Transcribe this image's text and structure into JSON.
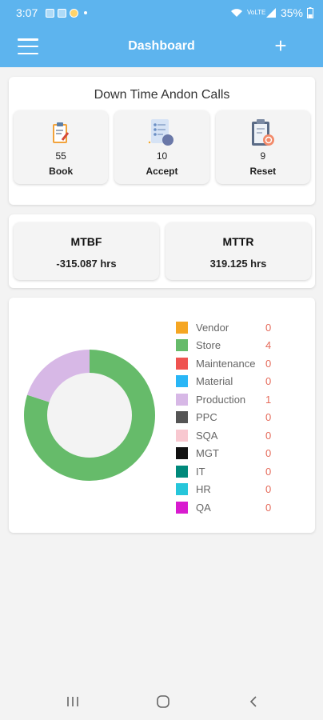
{
  "status_bar": {
    "time": "3:07",
    "battery": "35%",
    "network": "VoLTE"
  },
  "app_bar": {
    "title": "Dashboard"
  },
  "andon": {
    "heading": "Down Time Andon Calls",
    "tiles": [
      {
        "count": "55",
        "label": "Book",
        "icon": "clipboard-pencil-icon"
      },
      {
        "count": "10",
        "label": "Accept",
        "icon": "checklist-user-icon"
      },
      {
        "count": "9",
        "label": "Reset",
        "icon": "clipboard-reset-icon"
      }
    ]
  },
  "metrics": {
    "mtbf": {
      "label": "MTBF",
      "value": "-315.087 hrs"
    },
    "mttr": {
      "label": "MTTR",
      "value": "319.125 hrs"
    }
  },
  "chart_data": {
    "type": "pie",
    "categories": [
      "Vendor",
      "Store",
      "Maintenance",
      "Material",
      "Production",
      "PPC",
      "SQA",
      "MGT",
      "IT",
      "HR",
      "QA"
    ],
    "values": [
      0,
      4,
      0,
      0,
      1,
      0,
      0,
      0,
      0,
      0,
      0
    ],
    "colors": [
      "#f5a623",
      "#66bb6a",
      "#ef5350",
      "#29b6f6",
      "#d7b8e6",
      "#555555",
      "#f8c8d0",
      "#111111",
      "#00897b",
      "#26c6da",
      "#d81bcf"
    ],
    "legend_position": "right"
  }
}
